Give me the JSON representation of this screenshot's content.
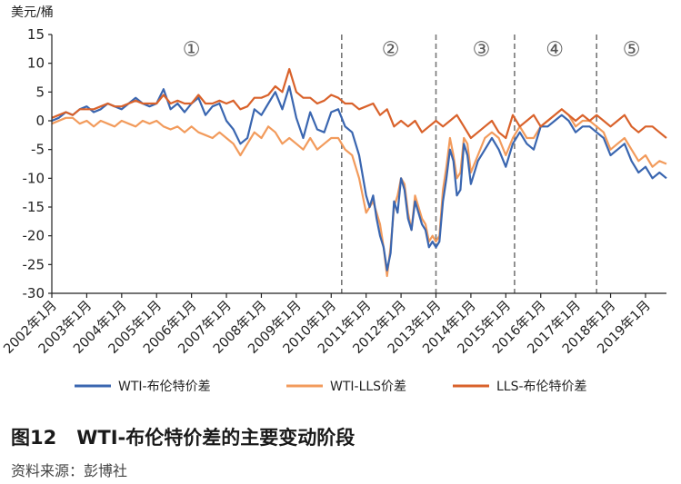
{
  "chart_data": {
    "type": "line",
    "title": "WTI-布伦特价差的主要变动阶段",
    "figure_number": "图12",
    "source": "资料来源：彭博社",
    "ylabel": "美元/桶",
    "ylim": [
      -30,
      15
    ],
    "yticks": [
      15,
      10,
      5,
      0,
      -5,
      -10,
      -15,
      -20,
      -25,
      -30
    ],
    "xlim": [
      2002.0,
      2019.6
    ],
    "xtick_labels": [
      "2002年1月",
      "2003年1月",
      "2004年1月",
      "2005年1月",
      "2006年1月",
      "2007年1月",
      "2008年1月",
      "2009年1月",
      "2010年1月",
      "2011年1月",
      "2012年1月",
      "2013年1月",
      "2014年1月",
      "2015年1月",
      "2016年1月",
      "2017年1月",
      "2018年1月",
      "2019年1月"
    ],
    "phase_boundaries": [
      2010.3,
      2013.0,
      2015.25,
      2017.6
    ],
    "phase_labels": [
      {
        "label": "①",
        "x": 2006.0
      },
      {
        "label": "②",
        "x": 2011.7
      },
      {
        "label": "③",
        "x": 2014.3
      },
      {
        "label": "④",
        "x": 2016.4
      },
      {
        "label": "⑤",
        "x": 2018.6
      }
    ],
    "legend_position": "bottom",
    "series": [
      {
        "name": "WTI-布伦特价差",
        "color": "#3a66b0",
        "x": [
          2002.0,
          2002.2,
          2002.4,
          2002.6,
          2002.8,
          2003.0,
          2003.2,
          2003.4,
          2003.6,
          2003.8,
          2004.0,
          2004.2,
          2004.4,
          2004.6,
          2004.8,
          2005.0,
          2005.2,
          2005.4,
          2005.6,
          2005.8,
          2006.0,
          2006.2,
          2006.4,
          2006.6,
          2006.8,
          2007.0,
          2007.2,
          2007.4,
          2007.6,
          2007.8,
          2008.0,
          2008.2,
          2008.4,
          2008.6,
          2008.8,
          2009.0,
          2009.2,
          2009.4,
          2009.6,
          2009.8,
          2010.0,
          2010.2,
          2010.4,
          2010.6,
          2010.8,
          2011.0,
          2011.1,
          2011.2,
          2011.3,
          2011.4,
          2011.5,
          2011.6,
          2011.7,
          2011.8,
          2011.9,
          2012.0,
          2012.1,
          2012.2,
          2012.3,
          2012.4,
          2012.5,
          2012.6,
          2012.7,
          2012.8,
          2012.9,
          2013.0,
          2013.1,
          2013.2,
          2013.3,
          2013.4,
          2013.5,
          2013.6,
          2013.7,
          2013.8,
          2013.9,
          2014.0,
          2014.2,
          2014.4,
          2014.6,
          2014.8,
          2015.0,
          2015.2,
          2015.4,
          2015.6,
          2015.8,
          2016.0,
          2016.2,
          2016.4,
          2016.6,
          2016.8,
          2017.0,
          2017.2,
          2017.4,
          2017.6,
          2017.8,
          2018.0,
          2018.2,
          2018.4,
          2018.6,
          2018.8,
          2019.0,
          2019.2,
          2019.4,
          2019.6
        ],
        "values": [
          0,
          0.5,
          1.5,
          1,
          2,
          2.5,
          1.5,
          2,
          3,
          2.5,
          2,
          3,
          4,
          3,
          2.5,
          3,
          5.5,
          2,
          3,
          1.5,
          3,
          4,
          1,
          2.5,
          3,
          0,
          -1.5,
          -4,
          -3,
          2,
          1,
          3,
          5,
          2,
          6,
          0.5,
          -3,
          1.5,
          -1.5,
          -2,
          1.5,
          2,
          -1,
          -2,
          -6,
          -13,
          -15,
          -13,
          -17,
          -20,
          -22,
          -26,
          -23,
          -14,
          -16,
          -10,
          -12,
          -17,
          -19,
          -14,
          -16,
          -18,
          -19,
          -22,
          -21,
          -22,
          -21,
          -14,
          -10,
          -5,
          -7,
          -13,
          -12,
          -4,
          -6,
          -11,
          -7,
          -5,
          -3,
          -5,
          -8,
          -4,
          -2,
          -4,
          -5,
          -1,
          -1,
          0,
          1,
          0,
          -2,
          -1,
          -1,
          -2,
          -3,
          -6,
          -5,
          -4,
          -7,
          -9,
          -8,
          -10,
          -9,
          -10
        ]
      },
      {
        "name": "WTI-LLS价差",
        "color": "#f29b5c",
        "x": [
          2002.0,
          2002.2,
          2002.4,
          2002.6,
          2002.8,
          2003.0,
          2003.2,
          2003.4,
          2003.6,
          2003.8,
          2004.0,
          2004.2,
          2004.4,
          2004.6,
          2004.8,
          2005.0,
          2005.2,
          2005.4,
          2005.6,
          2005.8,
          2006.0,
          2006.2,
          2006.4,
          2006.6,
          2006.8,
          2007.0,
          2007.2,
          2007.4,
          2007.6,
          2007.8,
          2008.0,
          2008.2,
          2008.4,
          2008.6,
          2008.8,
          2009.0,
          2009.2,
          2009.4,
          2009.6,
          2009.8,
          2010.0,
          2010.2,
          2010.4,
          2010.6,
          2010.8,
          2011.0,
          2011.1,
          2011.2,
          2011.3,
          2011.4,
          2011.5,
          2011.6,
          2011.7,
          2011.8,
          2011.9,
          2012.0,
          2012.1,
          2012.2,
          2012.3,
          2012.4,
          2012.5,
          2012.6,
          2012.7,
          2012.8,
          2012.9,
          2013.0,
          2013.1,
          2013.2,
          2013.3,
          2013.4,
          2013.5,
          2013.6,
          2013.7,
          2013.8,
          2013.9,
          2014.0,
          2014.2,
          2014.4,
          2014.6,
          2014.8,
          2015.0,
          2015.2,
          2015.4,
          2015.6,
          2015.8,
          2016.0,
          2016.2,
          2016.4,
          2016.6,
          2016.8,
          2017.0,
          2017.2,
          2017.4,
          2017.6,
          2017.8,
          2018.0,
          2018.2,
          2018.4,
          2018.6,
          2018.8,
          2019.0,
          2019.2,
          2019.4,
          2019.6
        ],
        "values": [
          -0.5,
          0,
          0.5,
          0.5,
          -0.5,
          0,
          -1,
          0,
          -0.5,
          -1,
          0,
          -0.5,
          -1,
          0,
          -0.5,
          0,
          -1,
          -1.5,
          -1,
          -2,
          -1,
          -2,
          -2.5,
          -3,
          -2,
          -3,
          -4,
          -6,
          -4,
          -2,
          -3,
          -1,
          -2,
          -4,
          -3,
          -4,
          -5,
          -3,
          -5,
          -4,
          -3,
          -3,
          -5,
          -6,
          -10,
          -16,
          -15,
          -14,
          -16,
          -18,
          -22,
          -27,
          -22,
          -15,
          -13,
          -10,
          -11,
          -16,
          -19,
          -13,
          -15,
          -17,
          -18,
          -21,
          -20,
          -21,
          -20,
          -12,
          -8,
          -3,
          -6,
          -10,
          -9,
          -3,
          -4,
          -9,
          -6,
          -3,
          -2,
          -3,
          -6,
          -3,
          -1,
          -3,
          -3,
          -1,
          0,
          1,
          2,
          1,
          -1,
          0,
          0,
          -1,
          -2,
          -5,
          -4,
          -3,
          -5,
          -7,
          -6,
          -8,
          -7,
          -7.5
        ]
      },
      {
        "name": "LLS-布伦特价差",
        "color": "#d9622b",
        "x": [
          2002.0,
          2002.2,
          2002.4,
          2002.6,
          2002.8,
          2003.0,
          2003.2,
          2003.4,
          2003.6,
          2003.8,
          2004.0,
          2004.2,
          2004.4,
          2004.6,
          2004.8,
          2005.0,
          2005.2,
          2005.4,
          2005.6,
          2005.8,
          2006.0,
          2006.2,
          2006.4,
          2006.6,
          2006.8,
          2007.0,
          2007.2,
          2007.4,
          2007.6,
          2007.8,
          2008.0,
          2008.2,
          2008.4,
          2008.6,
          2008.8,
          2009.0,
          2009.2,
          2009.4,
          2009.6,
          2009.8,
          2010.0,
          2010.2,
          2010.4,
          2010.6,
          2010.8,
          2011.0,
          2011.2,
          2011.4,
          2011.6,
          2011.8,
          2012.0,
          2012.2,
          2012.4,
          2012.6,
          2012.8,
          2013.0,
          2013.2,
          2013.4,
          2013.6,
          2013.8,
          2014.0,
          2014.2,
          2014.4,
          2014.6,
          2014.8,
          2015.0,
          2015.2,
          2015.4,
          2015.6,
          2015.8,
          2016.0,
          2016.2,
          2016.4,
          2016.6,
          2016.8,
          2017.0,
          2017.2,
          2017.4,
          2017.6,
          2017.8,
          2018.0,
          2018.2,
          2018.4,
          2018.6,
          2018.8,
          2019.0,
          2019.2,
          2019.4,
          2019.6
        ],
        "values": [
          0.5,
          1,
          1.5,
          1,
          2,
          2,
          2,
          2.5,
          3,
          2.5,
          2.5,
          3,
          3.5,
          3,
          3,
          3,
          4.5,
          3,
          3.5,
          3,
          3,
          4.5,
          3,
          3,
          3.5,
          3,
          3.5,
          2,
          2.5,
          4,
          4,
          4.5,
          6,
          5,
          9,
          5,
          4,
          4,
          3,
          3.5,
          4.5,
          4,
          3,
          3,
          2,
          2.5,
          3,
          1,
          2,
          -1,
          0,
          -1,
          0,
          -2,
          -1,
          0,
          -1,
          0,
          1,
          -1,
          -3,
          -2,
          -1,
          0,
          -2,
          -3,
          1,
          -1,
          0,
          1,
          -1,
          0,
          1,
          2,
          1,
          0,
          1,
          0,
          1,
          0,
          -1,
          0,
          1,
          -1,
          -2,
          -1,
          -1,
          -2,
          -3
        ]
      }
    ]
  }
}
